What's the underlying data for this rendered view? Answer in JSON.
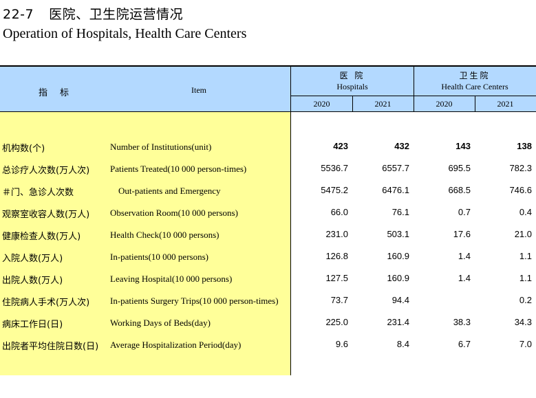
{
  "title": {
    "number": "22-7",
    "cn": "医院、卫生院运营情况",
    "en": "Operation of  Hospitals, Health Care Centers"
  },
  "header": {
    "indicator_cn": "指标",
    "item_en": "Item",
    "groups": [
      {
        "cn": "医 院",
        "en": "Hospitals"
      },
      {
        "cn": "卫生院",
        "en": "Health Care Centers"
      }
    ],
    "years": [
      "2020",
      "2021",
      "2020",
      "2021"
    ]
  },
  "rows": [
    {
      "cn": "机构数(个)",
      "en": "Number of Institutions(unit)",
      "values": [
        "423",
        "432",
        "143",
        "138"
      ]
    },
    {
      "cn": "总诊疗人次数(万人次)",
      "en": "Patients Treated(10 000 person-times)",
      "values": [
        "5536.7",
        "6557.7",
        "695.5",
        "782.3"
      ]
    },
    {
      "cn": "＃门、急诊人次数",
      "en": "Out-patients and Emergency",
      "values": [
        "5475.2",
        "6476.1",
        "668.5",
        "746.6"
      ]
    },
    {
      "cn": "观察室收容人数(万人)",
      "en": "Observation Room(10 000 persons)",
      "values": [
        "66.0",
        "76.1",
        "0.7",
        "0.4"
      ]
    },
    {
      "cn": "健康检查人数(万人)",
      "en": "Health Check(10 000 persons)",
      "values": [
        "231.0",
        "503.1",
        "17.6",
        "21.0"
      ]
    },
    {
      "cn": "入院人数(万人)",
      "en": "In-patients(10 000 persons)",
      "values": [
        "126.8",
        "160.9",
        "1.4",
        "1.1"
      ]
    },
    {
      "cn": "出院人数(万人)",
      "en": "Leaving Hospital(10 000 persons)",
      "values": [
        "127.5",
        "160.9",
        "1.4",
        "1.1"
      ]
    },
    {
      "cn": "住院病人手术(万人次)",
      "en": "In-patients Surgery Trips(10 000 person-times)",
      "values": [
        "73.7",
        "94.4",
        "",
        "0.2"
      ]
    },
    {
      "cn": "病床工作日(日)",
      "en": "Working Days of Beds(day)",
      "values": [
        "225.0",
        "231.4",
        "38.3",
        "34.3"
      ]
    },
    {
      "cn": "出院者平均住院日数(日)",
      "en": "Average Hospitalization Period(day)",
      "values": [
        "9.6",
        "8.4",
        "6.7",
        "7.0"
      ]
    }
  ]
}
